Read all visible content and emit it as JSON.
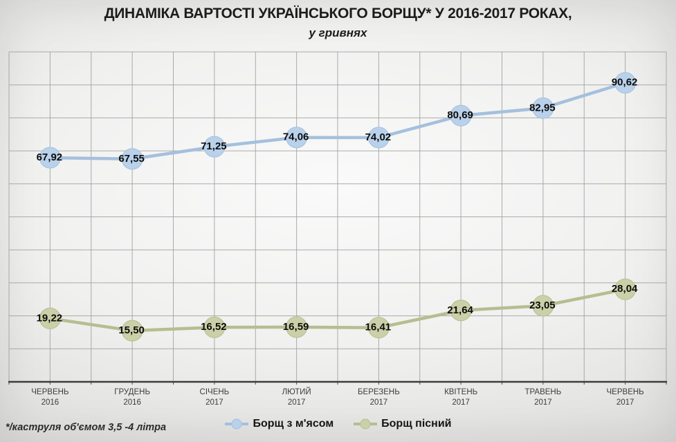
{
  "footnote": "*/каструля об'ємом 3,5 -4 літра",
  "chart_data": {
    "type": "line",
    "title": "ДИНАМІКА ВАРТОСТІ УКРАЇНСЬКОГО БОРЩУ* У 2016-2017 РОКАХ,",
    "subtitle": "у гривнях",
    "categories": [
      {
        "month": "ЧЕРВЕНЬ",
        "year": "2016"
      },
      {
        "month": "ГРУДЕНЬ",
        "year": "2016"
      },
      {
        "month": "СІЧЕНЬ",
        "year": "2017"
      },
      {
        "month": "ЛЮТИЙ",
        "year": "2017"
      },
      {
        "month": "БЕРЕЗЕНЬ",
        "year": "2017"
      },
      {
        "month": "КВІТЕНЬ",
        "year": "2017"
      },
      {
        "month": "ТРАВЕНЬ",
        "year": "2017"
      },
      {
        "month": "ЧЕРВЕНЬ",
        "year": "2017"
      }
    ],
    "series": [
      {
        "name": "Борщ з м'ясом",
        "color": "#a4c0dd",
        "marker_color": "#b9d1ea",
        "values": [
          67.92,
          67.55,
          71.25,
          74.06,
          74.02,
          80.69,
          82.95,
          90.62
        ],
        "labels": [
          "67,92",
          "67,55",
          "71,25",
          "74,06",
          "74,02",
          "80,69",
          "82,95",
          "90,62"
        ]
      },
      {
        "name": "Борщ пісний",
        "color": "#b6bd90",
        "marker_color": "#cbd0a8",
        "values": [
          19.22,
          15.5,
          16.52,
          16.59,
          16.41,
          21.64,
          23.05,
          28.04
        ],
        "labels": [
          "19,22",
          "15,50",
          "16,52",
          "16,59",
          "16,41",
          "21,64",
          "23,05",
          "28,04"
        ]
      }
    ],
    "ylim": [
      0,
      100
    ],
    "y_grid_step": 10,
    "grid": "both",
    "y_axis_labels_visible": false,
    "legend_position": "bottom",
    "xlabel": "",
    "ylabel": ""
  }
}
